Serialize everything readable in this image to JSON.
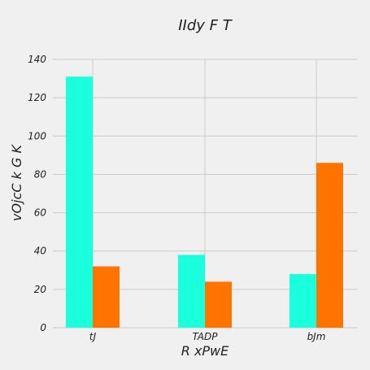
{
  "chart_data": {
    "type": "bar",
    "title": "IIdy F T",
    "xlabel": "R xPwE",
    "ylabel": "vOjcC k G K",
    "categories": [
      "tJ",
      "TADP",
      "bJm"
    ],
    "series": [
      {
        "values": [
          131,
          38,
          28
        ],
        "color": "#1affdc"
      },
      {
        "values": [
          32,
          24,
          86
        ],
        "color": "#ff7400"
      }
    ],
    "ylim": [
      0,
      140
    ],
    "yticks": [
      0,
      20,
      40,
      60,
      80,
      100,
      120,
      140
    ],
    "grid": true,
    "legend": "none"
  }
}
